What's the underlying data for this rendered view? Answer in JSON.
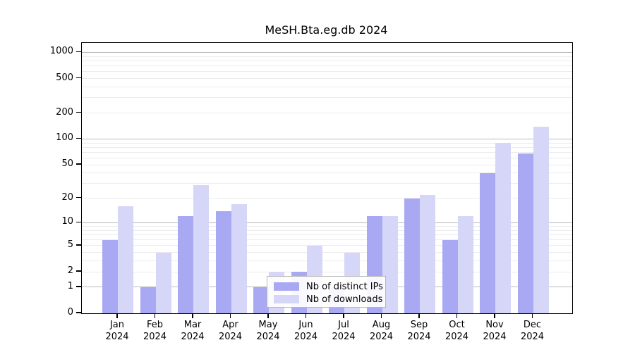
{
  "figure": {
    "title": "MeSH.Bta.eg.db 2024"
  },
  "chart_data": {
    "type": "bar",
    "title": "MeSH.Bta.eg.db 2024",
    "categories": [
      "Jan",
      "Feb",
      "Mar",
      "Apr",
      "May",
      "Jun",
      "Jul",
      "Aug",
      "Sep",
      "Oct",
      "Nov",
      "Dec"
    ],
    "x_tick_year": "2024",
    "series": [
      {
        "name": "Nb of distinct IPs",
        "color": "#a9a9f3",
        "values": [
          6,
          1,
          12,
          14,
          1,
          2,
          1,
          12,
          20,
          6,
          40,
          68
        ]
      },
      {
        "name": "Nb of downloads",
        "color": "#d6d6f8",
        "values": [
          16,
          4,
          29,
          17,
          2,
          5,
          4,
          12,
          22,
          12,
          90,
          140
        ]
      }
    ],
    "xlabel": "",
    "ylabel": "",
    "y_ticks": [
      0,
      1,
      2,
      5,
      10,
      20,
      50,
      100,
      200,
      500,
      1000
    ],
    "ylim": [
      0,
      1000
    ],
    "y_scale": "log10(value+1)",
    "grid": true,
    "gridline_color_major": "#b9b9b9",
    "gridline_color_minor": "#ececec",
    "legend_position": "bottom-center"
  }
}
